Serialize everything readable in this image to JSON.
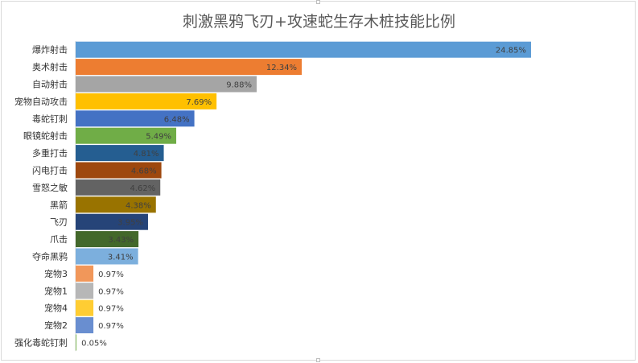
{
  "chart_data": {
    "type": "bar",
    "orientation": "horizontal",
    "title": "刺激黑鸦飞刃+攻速蛇生存木桩技能比例",
    "xlabel": "",
    "ylabel": "",
    "xlim": [
      0,
      30
    ],
    "grid": false,
    "legend": "none",
    "categories": [
      "爆炸射击",
      "奥术射击",
      "自动射击",
      "宠物自动攻击",
      "毒蛇钉刺",
      "眼镜蛇射击",
      "多重打击",
      "闪电打击",
      "雪怒之敏",
      "黑箭",
      "飞刃",
      "爪击",
      "夺命黑鸦",
      "宠物3",
      "宠物1",
      "宠物4",
      "宠物2",
      "强化毒蛇钉刺"
    ],
    "values": [
      24.85,
      12.34,
      9.88,
      7.69,
      6.48,
      5.49,
      4.81,
      4.68,
      4.62,
      4.38,
      3.95,
      3.43,
      3.41,
      0.97,
      0.97,
      0.97,
      0.97,
      0.05
    ],
    "value_labels": [
      "24.85%",
      "12.34%",
      "9.88%",
      "7.69%",
      "6.48%",
      "5.49%",
      "4.81%",
      "4.68%",
      "4.62%",
      "4.38%",
      "3.95%",
      "3.43%",
      "3.41%",
      "0.97%",
      "0.97%",
      "0.97%",
      "0.97%",
      "0.05%"
    ],
    "colors": [
      "#5b9bd5",
      "#ed7d31",
      "#a5a5a5",
      "#ffc000",
      "#4472c4",
      "#70ad47",
      "#255e91",
      "#9e480e",
      "#636363",
      "#997300",
      "#264478",
      "#43682b",
      "#7cafdd",
      "#f1975a",
      "#b7b7b7",
      "#ffcd33",
      "#698ed0",
      "#8cc168"
    ]
  }
}
